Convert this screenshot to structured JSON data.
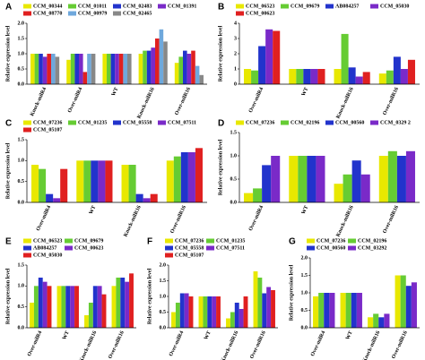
{
  "chart_data": [
    {
      "type": "bar",
      "label": "A",
      "ylabel": "Relative expression level",
      "categories": [
        "Knock-milR4",
        "Over-milR4",
        "WT",
        "Knock-milR16",
        "Over-milR16"
      ],
      "series": [
        {
          "name": "CCM_00344",
          "color": "#e8e800",
          "values": [
            1.0,
            0.8,
            1.0,
            1.0,
            0.7
          ]
        },
        {
          "name": "CCM_01011",
          "color": "#66cc33",
          "values": [
            1.0,
            1.0,
            1.0,
            1.1,
            0.9
          ]
        },
        {
          "name": "CCM_02483",
          "color": "#2233cc",
          "values": [
            1.0,
            1.0,
            1.0,
            1.1,
            1.1
          ]
        },
        {
          "name": "CCM_01391",
          "color": "#7a2ac8",
          "values": [
            0.9,
            1.0,
            1.0,
            1.2,
            1.0
          ]
        },
        {
          "name": "CCM_08770",
          "color": "#e02020",
          "values": [
            1.0,
            0.4,
            1.0,
            1.5,
            1.1
          ]
        },
        {
          "name": "CCM_00979",
          "color": "#6fa8dc",
          "values": [
            1.0,
            1.0,
            1.0,
            1.8,
            0.6
          ]
        },
        {
          "name": "CCM_02465",
          "color": "#888888",
          "values": [
            0.9,
            1.0,
            1.0,
            1.4,
            0.3
          ]
        }
      ],
      "ylim": [
        0,
        2
      ],
      "yticks": [
        {
          "value": 0,
          "label": "0.0"
        },
        0.5,
        {
          "value": 1,
          "label": "1.0"
        },
        1.5,
        {
          "value": 2,
          "label": "2.0"
        }
      ]
    },
    {
      "type": "bar",
      "label": "B",
      "ylabel": "Relative expression level",
      "categories": [
        "Over-milR4",
        "WT",
        "Knock-milR16",
        "Over-milR16"
      ],
      "series": [
        {
          "name": "CCM_06523",
          "color": "#e8e800",
          "values": [
            1.0,
            1.0,
            1.0,
            0.7
          ]
        },
        {
          "name": "CCM_09679",
          "color": "#66cc33",
          "values": [
            0.9,
            1.0,
            3.3,
            0.9
          ]
        },
        {
          "name": "AB084257",
          "color": "#2233cc",
          "values": [
            2.5,
            1.0,
            1.1,
            1.8
          ]
        },
        {
          "name": "CCM_05030",
          "color": "#7a2ac8",
          "values": [
            3.6,
            1.0,
            0.5,
            1.0
          ]
        },
        {
          "name": "CCM_00623",
          "color": "#e02020",
          "values": [
            3.5,
            1.0,
            0.8,
            1.6
          ]
        }
      ],
      "ylim": [
        0,
        4
      ],
      "yticks": [
        0,
        1,
        2,
        3,
        4
      ]
    },
    {
      "type": "bar",
      "label": "C",
      "ylabel": "Relative expression level",
      "categories": [
        "Over-milR4",
        "WT",
        "Knock-milR16",
        "Over-milR16"
      ],
      "series": [
        {
          "name": "CCM_07236",
          "color": "#e8e800",
          "values": [
            0.9,
            1.0,
            0.9,
            1.0
          ]
        },
        {
          "name": "CCM_01235",
          "color": "#66cc33",
          "values": [
            0.8,
            1.0,
            0.9,
            1.1
          ]
        },
        {
          "name": "CCM_05558",
          "color": "#2233cc",
          "values": [
            0.2,
            1.0,
            0.2,
            1.2
          ]
        },
        {
          "name": "CCM_07511",
          "color": "#7a2ac8",
          "values": [
            0.1,
            1.0,
            0.1,
            1.2
          ]
        },
        {
          "name": "CCM_05107",
          "color": "#e02020",
          "values": [
            0.8,
            1.0,
            0.2,
            1.3
          ]
        }
      ],
      "ylim": [
        0,
        1.5
      ],
      "yticks": [
        {
          "value": 0,
          "label": "0.0"
        },
        0.5,
        {
          "value": 1,
          "label": "1.0"
        },
        1.5
      ]
    },
    {
      "type": "bar",
      "label": "D",
      "ylabel": "Relative expression level",
      "categories": [
        "Over-milR4",
        "WT",
        "Knock-milR16",
        "Over-milR16"
      ],
      "series": [
        {
          "name": "CCM_07236",
          "color": "#e8e800",
          "values": [
            0.2,
            1.0,
            0.4,
            1.0
          ]
        },
        {
          "name": "CCM_02196",
          "color": "#66cc33",
          "values": [
            0.3,
            1.0,
            0.6,
            1.1
          ]
        },
        {
          "name": "CCM_00560",
          "color": "#2233cc",
          "values": [
            0.8,
            1.0,
            0.9,
            1.0
          ]
        },
        {
          "name": "CCM_0329 2",
          "color": "#7a2ac8",
          "values": [
            1.0,
            1.0,
            0.6,
            1.1
          ]
        }
      ],
      "ylim": [
        0,
        1.5
      ],
      "yticks": [
        {
          "value": 0,
          "label": "0.0"
        },
        0.5,
        {
          "value": 1,
          "label": "1.0"
        },
        1.5
      ]
    },
    {
      "type": "bar",
      "label": "E",
      "ylabel": "Relative expression level",
      "categories": [
        "Over-milR4",
        "WT",
        "Knock-milR16",
        "Over-milR16"
      ],
      "series": [
        {
          "name": "CCM_06523",
          "color": "#e8e800",
          "values": [
            0.6,
            1.0,
            0.3,
            1.0
          ]
        },
        {
          "name": "CCM_09679",
          "color": "#66cc33",
          "values": [
            1.0,
            1.0,
            0.6,
            1.2
          ]
        },
        {
          "name": "AB084257",
          "color": "#2233cc",
          "values": [
            1.2,
            1.0,
            1.0,
            1.2
          ]
        },
        {
          "name": "CCM_00623",
          "color": "#7a2ac8",
          "values": [
            1.1,
            1.0,
            1.0,
            1.1
          ]
        },
        {
          "name": "CCM_05030",
          "color": "#e02020",
          "values": [
            1.0,
            1.0,
            0.8,
            1.3
          ]
        }
      ],
      "ylim": [
        0,
        1.5
      ],
      "yticks": [
        {
          "value": 0,
          "label": "0.0"
        },
        0.5,
        {
          "value": 1,
          "label": "1.0"
        },
        1.5
      ]
    },
    {
      "type": "bar",
      "label": "F",
      "ylabel": "Relative expression level",
      "categories": [
        "Over-milR4",
        "WT",
        "Knock-milR16",
        "Over-milR16"
      ],
      "series": [
        {
          "name": "CCM_07236",
          "color": "#e8e800",
          "values": [
            0.5,
            1.0,
            0.3,
            1.8
          ]
        },
        {
          "name": "CCM_01235",
          "color": "#66cc33",
          "values": [
            0.8,
            1.0,
            0.5,
            1.6
          ]
        },
        {
          "name": "CCM_05558",
          "color": "#2233cc",
          "values": [
            1.1,
            1.0,
            0.8,
            1.1
          ]
        },
        {
          "name": "CCM_07511",
          "color": "#7a2ac8",
          "values": [
            1.1,
            1.0,
            0.6,
            1.3
          ]
        },
        {
          "name": "CCM_05107",
          "color": "#e02020",
          "values": [
            1.0,
            1.0,
            1.0,
            1.2
          ]
        }
      ],
      "ylim": [
        0,
        2
      ],
      "yticks": [
        {
          "value": 0,
          "label": "0.0"
        },
        0.5,
        {
          "value": 1,
          "label": "1.0"
        },
        1.5,
        {
          "value": 2,
          "label": "2.0"
        }
      ]
    },
    {
      "type": "bar",
      "label": "G",
      "ylabel": "Relative expression level",
      "categories": [
        "Over-milR4",
        "WT",
        "Knock-milR16",
        "Over-milR16"
      ],
      "series": [
        {
          "name": "CCM_07236",
          "color": "#e8e800",
          "values": [
            0.9,
            1.0,
            0.3,
            1.5
          ]
        },
        {
          "name": "CCM_02196",
          "color": "#66cc33",
          "values": [
            1.0,
            1.0,
            0.4,
            1.5
          ]
        },
        {
          "name": "CCM_00560",
          "color": "#2233cc",
          "values": [
            1.0,
            1.0,
            0.3,
            1.2
          ]
        },
        {
          "name": "CCM_03292",
          "color": "#7a2ac8",
          "values": [
            1.0,
            1.0,
            0.4,
            1.3
          ]
        }
      ],
      "ylim": [
        0,
        2
      ],
      "yticks": [
        {
          "value": 0,
          "label": "0.0"
        },
        0.5,
        {
          "value": 1,
          "label": "1.0"
        },
        1.5,
        {
          "value": 2,
          "label": "2.0"
        }
      ]
    }
  ]
}
